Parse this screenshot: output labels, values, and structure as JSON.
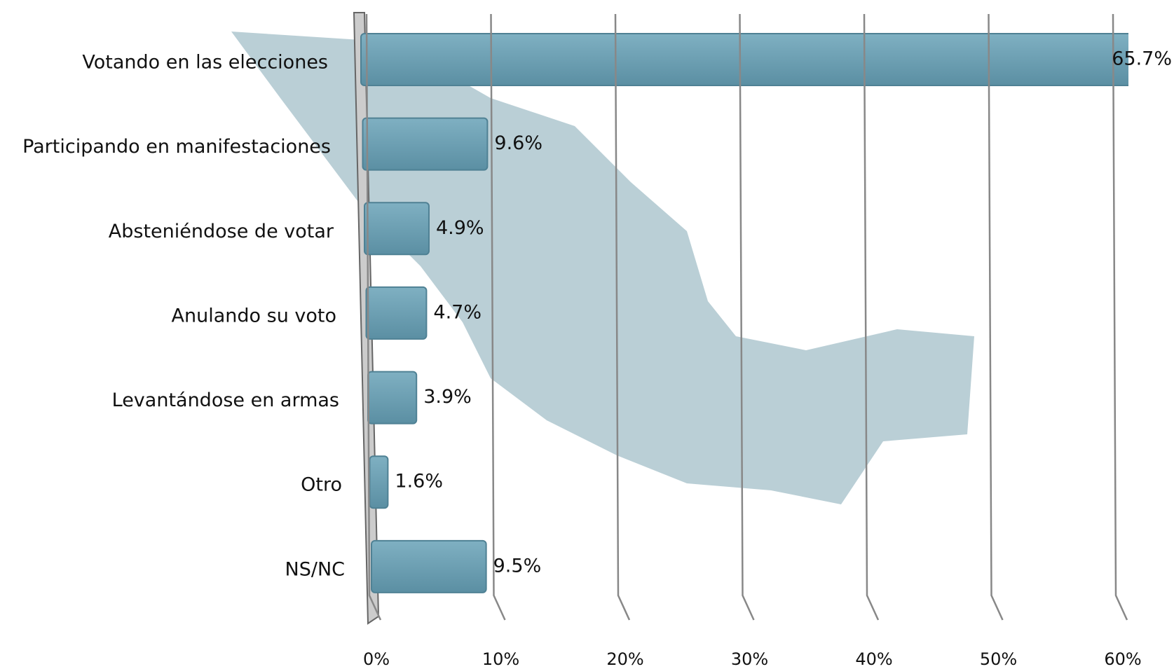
{
  "chart_data": {
    "type": "bar",
    "orientation": "horizontal",
    "categories": [
      "Votando en las elecciones",
      "Participando en manifestaciones",
      "Absteniéndose de votar",
      "Anulando su voto",
      "Levantándose en armas",
      "Otro",
      "NS/NC"
    ],
    "values": [
      65.7,
      9.6,
      4.9,
      4.7,
      3.9,
      1.6,
      9.5
    ],
    "value_labels": [
      "65.7%",
      "9.6%",
      "4.9%",
      "4.7%",
      "3.9%",
      "1.6%",
      "9.5%"
    ],
    "color": "#6a9fb2",
    "xlim": [
      0,
      60
    ],
    "xticks": [
      {
        "value": 0,
        "label": "0%"
      },
      {
        "value": 10,
        "label": "10%"
      },
      {
        "value": 20,
        "label": "20%"
      },
      {
        "value": 30,
        "label": "30%"
      },
      {
        "value": 40,
        "label": "40%"
      },
      {
        "value": 50,
        "label": "50%"
      },
      {
        "value": 60,
        "label": "60%"
      }
    ],
    "grid": true
  }
}
